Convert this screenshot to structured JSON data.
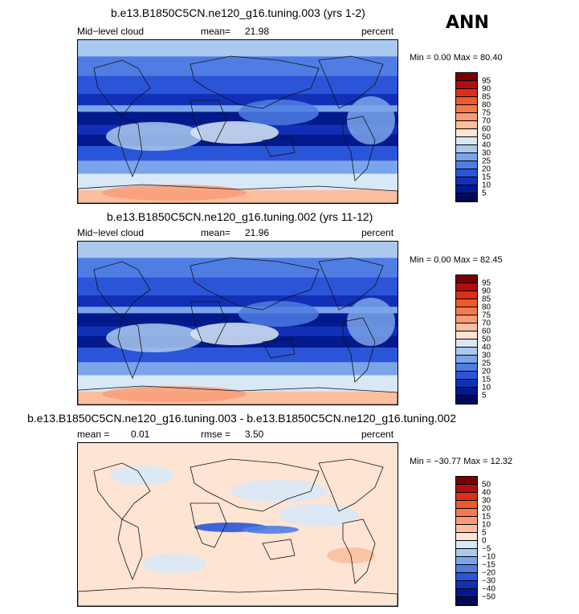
{
  "season": "ANN",
  "panels": [
    {
      "title": "b.e13.B1850C5CN.ne120_g16.tuning.003 (yrs 1-2)",
      "left_label": "Mid−level cloud",
      "stat1_label": "mean=",
      "stat1_value": "21.98",
      "stat2_label": "",
      "stat2_value": "",
      "units": "percent",
      "minmax": "Min =    0.00 Max =  80.40",
      "colorbar_labels": [
        "95",
        "90",
        "85",
        "80",
        "75",
        "70",
        "60",
        "50",
        "40",
        "30",
        "25",
        "20",
        "15",
        "10",
        "5"
      ],
      "colorbar_colors": [
        "#7a0000",
        "#b50d0d",
        "#d9301a",
        "#ee5a2a",
        "#f47a4d",
        "#f89c77",
        "#fbbfa0",
        "#fde4d3",
        "#d8e8f6",
        "#aac9ee",
        "#7aa5ea",
        "#4f7de3",
        "#2b55d8",
        "#1230b7",
        "#031a8c",
        "#010a5a"
      ],
      "style": "field",
      "mean_value": 21.98
    },
    {
      "title": "b.e13.B1850C5CN.ne120_g16.tuning.002 (yrs 11-12)",
      "left_label": "Mid−level cloud",
      "stat1_label": "mean=",
      "stat1_value": "21.96",
      "stat2_label": "",
      "stat2_value": "",
      "units": "percent",
      "minmax": "Min =    0.00 Max =  82.45",
      "colorbar_labels": [
        "95",
        "90",
        "85",
        "80",
        "75",
        "70",
        "60",
        "50",
        "40",
        "30",
        "25",
        "20",
        "15",
        "10",
        "5"
      ],
      "colorbar_colors": [
        "#7a0000",
        "#b50d0d",
        "#d9301a",
        "#ee5a2a",
        "#f47a4d",
        "#f89c77",
        "#fbbfa0",
        "#fde4d3",
        "#d8e8f6",
        "#aac9ee",
        "#7aa5ea",
        "#4f7de3",
        "#2b55d8",
        "#1230b7",
        "#031a8c",
        "#010a5a"
      ],
      "style": "field",
      "mean_value": 21.96
    },
    {
      "title": "b.e13.B1850C5CN.ne120_g16.tuning.003 - b.e13.B1850C5CN.ne120_g16.tuning.002",
      "left_label": "mean =",
      "stat1_label": "0.01",
      "stat1_value": "",
      "stat2_label": "rmse =",
      "stat2_value": "3.50",
      "units": "percent",
      "minmax": "Min = −30.77 Max =  12.32",
      "colorbar_labels": [
        "50",
        "40",
        "30",
        "20",
        "15",
        "10",
        "5",
        "0",
        "−5",
        "−10",
        "−15",
        "−20",
        "−30",
        "−40",
        "−50"
      ],
      "colorbar_colors": [
        "#7a0000",
        "#b50d0d",
        "#d9301a",
        "#ee5a2a",
        "#f47a4d",
        "#f89c77",
        "#fbbfa0",
        "#fde4d3",
        "#d8e8f6",
        "#aac9ee",
        "#7aa5ea",
        "#4f7de3",
        "#2b55d8",
        "#1230b7",
        "#031a8c",
        "#010a5a"
      ],
      "style": "diff",
      "mean_value": 0.01
    }
  ],
  "chart_data": [
    {
      "type": "heatmap",
      "title": "b.e13.B1850C5CN.ne120_g16.tuning.003 (yrs 1-2)",
      "variable": "Mid−level cloud",
      "units": "percent",
      "mean": 21.98,
      "min": 0.0,
      "max": 80.4,
      "levels": [
        5,
        10,
        15,
        20,
        25,
        30,
        40,
        50,
        60,
        70,
        75,
        80,
        85,
        90,
        95
      ]
    },
    {
      "type": "heatmap",
      "title": "b.e13.B1850C5CN.ne120_g16.tuning.002 (yrs 11-12)",
      "variable": "Mid−level cloud",
      "units": "percent",
      "mean": 21.96,
      "min": 0.0,
      "max": 82.45,
      "levels": [
        5,
        10,
        15,
        20,
        25,
        30,
        40,
        50,
        60,
        70,
        75,
        80,
        85,
        90,
        95
      ]
    },
    {
      "type": "heatmap",
      "title": "b.e13.B1850C5CN.ne120_g16.tuning.003 - b.e13.B1850C5CN.ne120_g16.tuning.002",
      "units": "percent",
      "mean": 0.01,
      "rmse": 3.5,
      "min": -30.77,
      "max": 12.32,
      "levels": [
        -50,
        -40,
        -30,
        -20,
        -15,
        -10,
        -5,
        0,
        5,
        10,
        15,
        20,
        30,
        40,
        50
      ]
    }
  ]
}
